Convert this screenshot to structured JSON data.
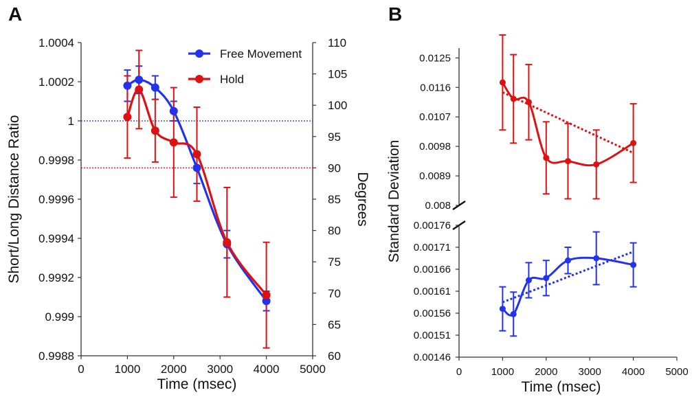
{
  "chart_data": [
    {
      "panel_label": "A",
      "type": "line",
      "xlabel": "Time (msec)",
      "ylabel": "Short/Long Distance Ratio",
      "y2label": "Degrees",
      "xlim": [
        0,
        5000
      ],
      "ylim": [
        0.9988,
        1.0004
      ],
      "y2lim": [
        60,
        110
      ],
      "x_ticks": [
        "0",
        "1000",
        "2000",
        "3000",
        "4000",
        "5000"
      ],
      "y_ticks": [
        "0.9988",
        "0.999",
        "0.9992",
        "0.9994",
        "0.9996",
        "0.9998",
        "1",
        "1.0002",
        "1.0004"
      ],
      "y2_ticks": [
        "60",
        "65",
        "70",
        "75",
        "80",
        "85",
        "90",
        "95",
        "100",
        "105",
        "110"
      ],
      "grid": false,
      "legend_position": "top-right",
      "series": [
        {
          "name": "Free Movement",
          "color": "#2233ee",
          "x": [
            1000,
            1250,
            1600,
            2000,
            2500,
            3150,
            4000
          ],
          "y": [
            1.00018,
            1.00021,
            1.00017,
            1.00005,
            0.99976,
            0.99937,
            0.99908
          ],
          "err": [
            8e-05,
            7e-05,
            6e-05,
            5e-05,
            8e-05,
            7e-05,
            5e-05
          ],
          "reference_line": 1.0
        },
        {
          "name": "Hold",
          "color": "#dd1111",
          "x": [
            1000,
            1250,
            1600,
            2000,
            2500,
            3150,
            4000
          ],
          "y": [
            1.00002,
            1.00016,
            0.99995,
            0.99989,
            0.99983,
            0.99938,
            0.99911
          ],
          "err": [
            0.00021,
            0.0002,
            0.00016,
            0.00028,
            0.00024,
            0.00028,
            0.00027
          ],
          "reference_line": 0.99976
        }
      ]
    },
    {
      "panel_label": "B",
      "type": "line",
      "xlabel": "Time (msec)",
      "ylabel": "Standard Deviation",
      "xlim": [
        0,
        5000
      ],
      "x_ticks": [
        "0",
        "1000",
        "2000",
        "3000",
        "4000",
        "5000"
      ],
      "broken_y_axis": true,
      "grid": false,
      "upper": {
        "ylim": [
          0.008,
          0.0128
        ],
        "y_ticks": [
          "0.008",
          "0.0089",
          "0.0098",
          "0.0107",
          "0.0116",
          "0.0125"
        ],
        "series": [
          {
            "color": "#dd1111",
            "x": [
              1000,
              1250,
              1600,
              2000,
              2500,
              3150,
              4000
            ],
            "y": [
              0.01175,
              0.01125,
              0.01115,
              0.00945,
              0.00935,
              0.00925,
              0.0099
            ],
            "err": [
              0.00145,
              0.00135,
              0.00115,
              0.0011,
              0.00115,
              0.00105,
              0.0012
            ],
            "trend_y": [
              0.01145,
              0.0096
            ]
          }
        ]
      },
      "lower": {
        "ylim": [
          0.00146,
          0.00176
        ],
        "y_ticks": [
          "0.00146",
          "0.00151",
          "0.00156",
          "0.00161",
          "0.00166",
          "0.00171",
          "0.00176"
        ],
        "series": [
          {
            "color": "#2233ee",
            "x": [
              1000,
              1250,
              1600,
              2000,
              2500,
              3150,
              4000
            ],
            "y": [
              0.00157,
              0.001558,
              0.001635,
              0.00164,
              0.00168,
              0.001685,
              0.00167
            ],
            "err": [
              5e-05,
              5e-05,
              4e-05,
              4e-05,
              3e-05,
              6e-05,
              5e-05
            ],
            "trend_y": [
              0.001585,
              0.0017
            ]
          }
        ]
      }
    }
  ]
}
